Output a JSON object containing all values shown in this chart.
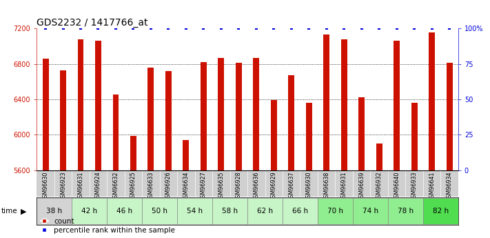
{
  "title": "GDS2232 / 1417766_at",
  "samples": [
    "GSM96630",
    "GSM96923",
    "GSM96631",
    "GSM96924",
    "GSM96632",
    "GSM96925",
    "GSM96633",
    "GSM96926",
    "GSM96634",
    "GSM96927",
    "GSM96635",
    "GSM96928",
    "GSM96636",
    "GSM96929",
    "GSM96637",
    "GSM96930",
    "GSM96638",
    "GSM96931",
    "GSM96639",
    "GSM96932",
    "GSM96640",
    "GSM96933",
    "GSM96641",
    "GSM96934"
  ],
  "counts": [
    6860,
    6730,
    7080,
    7060,
    6455,
    5990,
    6760,
    6720,
    5940,
    6820,
    6870,
    6810,
    6870,
    6390,
    6670,
    6360,
    7130,
    7080,
    6420,
    5900,
    7060,
    6360,
    7160,
    6810
  ],
  "time_groups": [
    {
      "label": "38 h",
      "start": 0,
      "end": 2,
      "color": "#d3d3d3"
    },
    {
      "label": "42 h",
      "start": 2,
      "end": 4,
      "color": "#c8f5c8"
    },
    {
      "label": "46 h",
      "start": 4,
      "end": 6,
      "color": "#c8f5c8"
    },
    {
      "label": "50 h",
      "start": 6,
      "end": 8,
      "color": "#c8f5c8"
    },
    {
      "label": "54 h",
      "start": 8,
      "end": 10,
      "color": "#c8f5c8"
    },
    {
      "label": "58 h",
      "start": 10,
      "end": 12,
      "color": "#c8f5c8"
    },
    {
      "label": "62 h",
      "start": 12,
      "end": 14,
      "color": "#c8f5c8"
    },
    {
      "label": "66 h",
      "start": 14,
      "end": 16,
      "color": "#c8f5c8"
    },
    {
      "label": "70 h",
      "start": 16,
      "end": 18,
      "color": "#90ee90"
    },
    {
      "label": "74 h",
      "start": 18,
      "end": 20,
      "color": "#90ee90"
    },
    {
      "label": "78 h",
      "start": 20,
      "end": 22,
      "color": "#90ee90"
    },
    {
      "label": "82 h",
      "start": 22,
      "end": 24,
      "color": "#50dd50"
    }
  ],
  "ylim": [
    5600,
    7200
  ],
  "y2lim": [
    0,
    100
  ],
  "bar_color": "#cc1100",
  "percentile_color": "#0000dd",
  "sample_bg": "#d0d0d0",
  "plot_bg": "#ffffff",
  "title_fontsize": 10,
  "tick_fontsize": 7,
  "bar_width": 0.35
}
